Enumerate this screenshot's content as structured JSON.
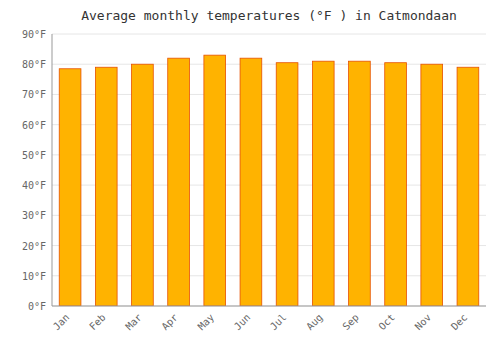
{
  "chart_data": {
    "type": "bar",
    "title": "Average monthly temperatures (°F ) in Catmondaan",
    "categories": [
      "Jan",
      "Feb",
      "Mar",
      "Apr",
      "May",
      "Jun",
      "Jul",
      "Aug",
      "Sep",
      "Oct",
      "Nov",
      "Dec"
    ],
    "values": [
      78.5,
      79.0,
      80.0,
      82.0,
      83.0,
      82.0,
      80.5,
      81.0,
      81.0,
      80.5,
      80.0,
      79.0
    ],
    "color": "#FFB300",
    "ylim": [
      0,
      90
    ],
    "yticks": [
      {
        "value": 0,
        "label": "0°F"
      },
      {
        "value": 10,
        "label": "10°F"
      },
      {
        "value": 20,
        "label": "20°F"
      },
      {
        "value": 30,
        "label": "30°F"
      },
      {
        "value": 40,
        "label": "40°F"
      },
      {
        "value": 50,
        "label": "50°F"
      },
      {
        "value": 60,
        "label": "60°F"
      },
      {
        "value": 70,
        "label": "70°F"
      },
      {
        "value": 80,
        "label": "80°F"
      },
      {
        "value": 90,
        "label": "90°F"
      }
    ],
    "grid": true
  }
}
